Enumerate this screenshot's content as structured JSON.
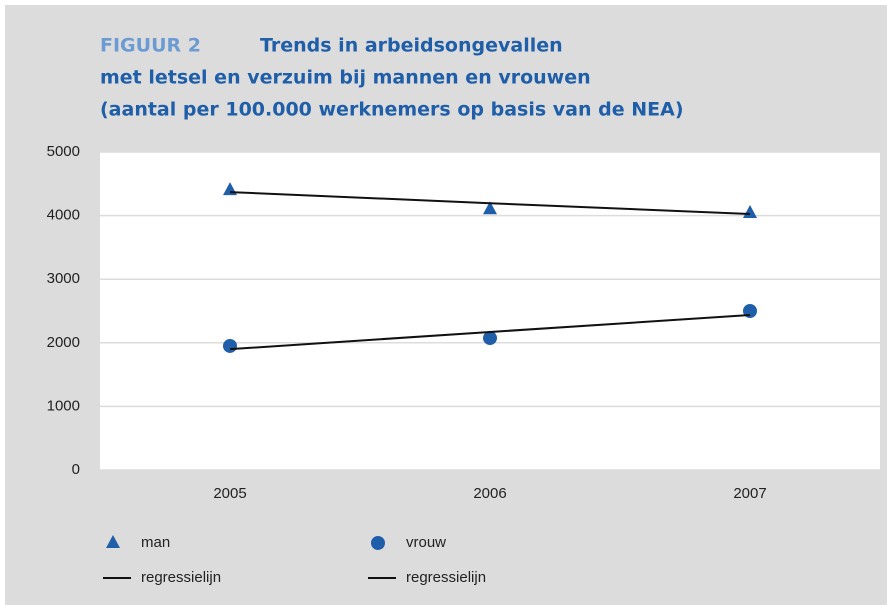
{
  "chart_data": {
    "type": "line",
    "figure_label": "FIGUUR 2",
    "title_lines": [
      "Trends in arbeidsongevallen",
      "met letsel en verzuim bij mannen en vrouwen",
      "(aantal per 100.000 werknemers op basis van de NEA)"
    ],
    "categories": [
      "2005",
      "2006",
      "2007"
    ],
    "ylim": [
      0,
      5000
    ],
    "yticks": [
      0,
      1000,
      2000,
      3000,
      4000,
      5000
    ],
    "grid": true,
    "series": [
      {
        "name": "man",
        "color": "#1f5ea8",
        "marker": "triangle",
        "line": false,
        "values": [
          4400,
          4100,
          4040
        ]
      },
      {
        "name": "vrouw",
        "color": "#1f5ea8",
        "marker": "circle",
        "line": false,
        "values": [
          1950,
          2075,
          2500
        ]
      },
      {
        "name": "regressielijn",
        "color": "#111111",
        "marker": "none",
        "line": true,
        "values": [
          4370,
          4195,
          4025
        ]
      },
      {
        "name": "regressielijn",
        "color": "#111111",
        "marker": "none",
        "line": true,
        "values": [
          1900,
          2170,
          2437
        ]
      }
    ]
  }
}
